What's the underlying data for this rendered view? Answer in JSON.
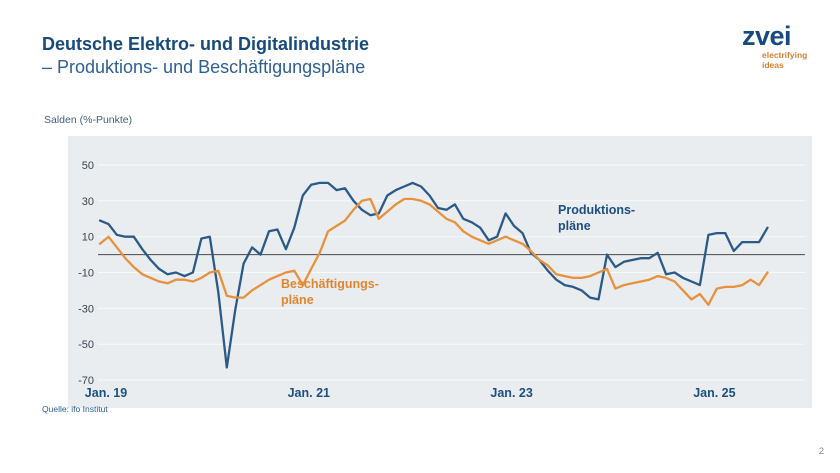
{
  "header": {
    "title_line1": "Deutsche Elektro- und Digitalindustrie",
    "title_line2": "– Produktions- und Beschäftigungspläne"
  },
  "logo": {
    "brand": "zvei",
    "tagline_line1": "electrifying",
    "tagline_line2": "ideas",
    "brand_color": "#174a7e",
    "tagline_color": "#d9802e"
  },
  "chart": {
    "y_axis_title": "Salden (%-Punkte)",
    "series_labels": {
      "produktion": {
        "line1": "Produktions-",
        "line2": "pläne"
      },
      "beschaeftigung": {
        "line1": "Beschäftigungs-",
        "line2": "pläne"
      }
    }
  },
  "chart_data": {
    "type": "line",
    "title": "Deutsche Elektro- und Digitalindustrie – Produktions- und Beschäftigungspläne",
    "ylabel": "Salden (%-Punkte)",
    "x_frequency": "monthly",
    "x_start": "2019-01",
    "x_end": "2025-08",
    "x_tick_labels": [
      "Jan. 19",
      "Jan. 21",
      "Jan. 23",
      "Jan. 25"
    ],
    "x_tick_month_indices": [
      0,
      24,
      48,
      72
    ],
    "y_ticks": [
      50,
      30,
      10,
      -10,
      -30,
      -50,
      -70
    ],
    "ylim": [
      -70,
      50
    ],
    "grid": "horizontal",
    "zero_line": true,
    "legend_position": "inline-annotations",
    "series": [
      {
        "name": "Produktionspläne",
        "color": "#2b5a87",
        "values": [
          19,
          17,
          11,
          10,
          10,
          3,
          -3,
          -8,
          -11,
          -10,
          -12,
          -10,
          9,
          10,
          -21,
          -63,
          -31,
          -5,
          4,
          0,
          13,
          14,
          3,
          15,
          33,
          39,
          40,
          40,
          36,
          37,
          30,
          25,
          22,
          23,
          33,
          36,
          38,
          40,
          38,
          33,
          26,
          25,
          28,
          20,
          18,
          15,
          8,
          10,
          23,
          16,
          12,
          1,
          -3,
          -9,
          -14,
          -17,
          -18,
          -20,
          -24,
          -25,
          0,
          -7,
          -4,
          -3,
          -2,
          -2,
          1,
          -11,
          -10,
          -13,
          -15,
          -17,
          11,
          12,
          12,
          2,
          7,
          7,
          7,
          15
        ]
      },
      {
        "name": "Beschäftigungspläne",
        "color": "#e8913c",
        "values": [
          6,
          10,
          4,
          -2,
          -7,
          -11,
          -13,
          -15,
          -16,
          -14,
          -14,
          -15,
          -13,
          -10,
          -9,
          -23,
          -24,
          -24,
          -20,
          -17,
          -14,
          -12,
          -10,
          -9,
          -17,
          -8,
          1,
          13,
          16,
          19,
          25,
          30,
          31,
          20,
          24,
          28,
          31,
          31,
          30,
          28,
          24,
          20,
          18,
          13,
          10,
          8,
          6,
          8,
          10,
          8,
          6,
          2,
          -3,
          -6,
          -11,
          -12,
          -13,
          -13,
          -12,
          -10,
          -8,
          -19,
          -17,
          -16,
          -15,
          -14,
          -12,
          -13,
          -15,
          -20,
          -25,
          -22,
          -28,
          -19,
          -18,
          -18,
          -17,
          -14,
          -17,
          -10
        ]
      }
    ]
  },
  "colors": {
    "title_blue": "#164a7d",
    "plot_background": "#e9edf0",
    "gridline": "#f8fafb",
    "zero_line": "#4a4a4a",
    "tick_label": "#3c434b"
  },
  "footer": {
    "source": "Quelle: ifo Institut",
    "page_number": "2"
  }
}
